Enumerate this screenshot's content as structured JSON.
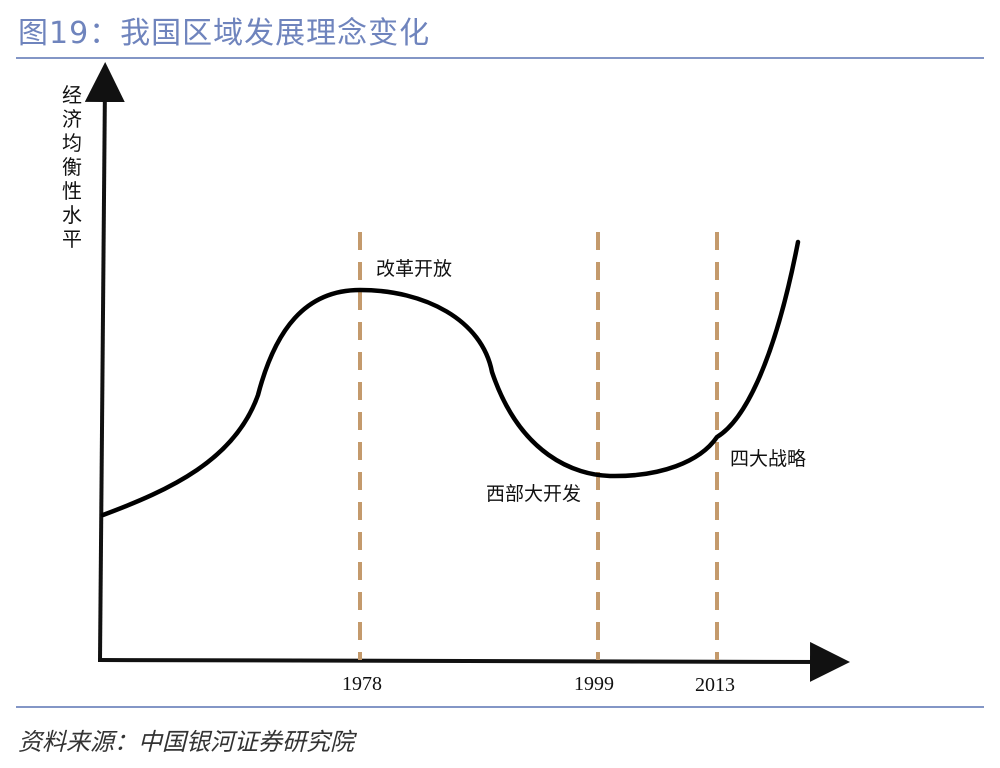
{
  "title": "图19：我国区域发展理念变化",
  "source": "资料来源：中国银河证券研究院",
  "y_axis_label": "经济均衡性水平",
  "ticks": [
    "1978",
    "1999",
    "2013"
  ],
  "events": [
    "改革开放",
    "西部大开发",
    "四大战略"
  ],
  "colors": {
    "title": "#6f84bd",
    "rule": "#8396c6",
    "curve": "#000000",
    "dashed_markers": "#c49a6c"
  }
}
